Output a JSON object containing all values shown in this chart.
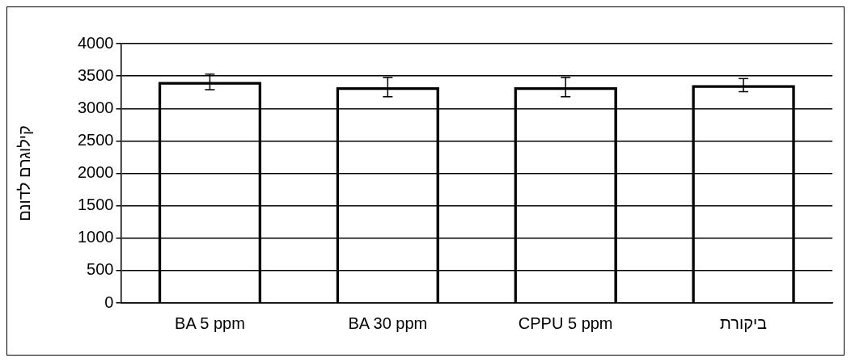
{
  "chart_data": {
    "type": "bar",
    "ylabel": "קילוגרם לדונם",
    "categories": [
      "BA 5 ppm",
      "BA 30 ppm",
      "CPPU 5 ppm",
      "ביקורת"
    ],
    "values": [
      3410,
      3330,
      3330,
      3360
    ],
    "errors": [
      120,
      150,
      150,
      100
    ],
    "color": "#000000",
    "ylim": [
      0,
      4000
    ],
    "yticks": [
      0,
      500,
      1000,
      1500,
      2000,
      2500,
      3000,
      3500,
      4000
    ],
    "grid": "y"
  }
}
